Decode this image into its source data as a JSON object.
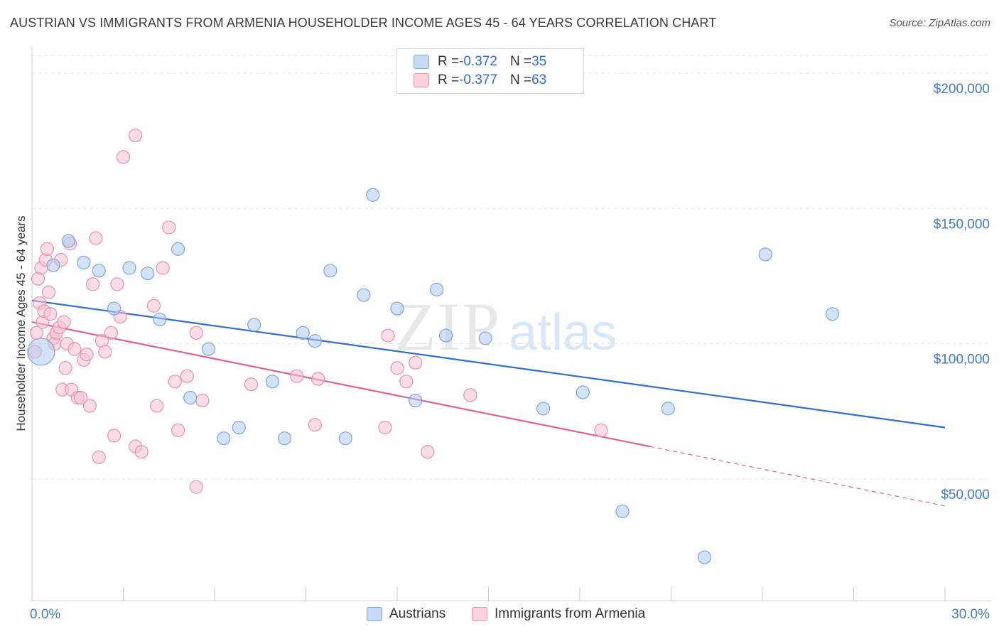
{
  "header": {
    "title": "AUSTRIAN VS IMMIGRANTS FROM ARMENIA HOUSEHOLDER INCOME AGES 45 - 64 YEARS CORRELATION CHART",
    "source": "Source: ZipAtlas.com"
  },
  "watermark": {
    "zip": "ZIP",
    "atlas": "atlas"
  },
  "legend": {
    "austrians": {
      "r_label": "R = ",
      "r_value": "-0.372",
      "n_label": "N = ",
      "n_value": "35"
    },
    "armenia": {
      "r_label": "R = ",
      "r_value": "-0.377",
      "n_label": "N = ",
      "n_value": "63"
    }
  },
  "bottom_legend": {
    "austrians": "Austrians",
    "armenia": "Immigrants from Armenia"
  },
  "colors": {
    "austrians_fill": "#aecbf0",
    "austrians_stroke": "#7aa6df",
    "austrians_line": "#2f6fce",
    "armenia_fill": "#f7c1d1",
    "armenia_stroke": "#eb8fab",
    "armenia_line": "#e0628e",
    "axis_text": "#3f7bd0",
    "grid": "#e3e3e3"
  },
  "chart_data": {
    "type": "scatter",
    "title": "AUSTRIAN VS IMMIGRANTS FROM ARMENIA HOUSEHOLDER INCOME AGES 45 - 64 YEARS CORRELATION CHART",
    "xlabel": "",
    "ylabel": "Householder Income Ages 45 - 64 years",
    "xlim": [
      0,
      30
    ],
    "ylim": [
      5000,
      210000
    ],
    "x_tick_labels": [
      "0.0%",
      "30.0%"
    ],
    "y_ticks": [
      50000,
      100000,
      150000,
      200000
    ],
    "y_tick_labels": [
      "$50,000",
      "$100,000",
      "$150,000",
      "$200,000"
    ],
    "grid": true,
    "legend_position": "top-center",
    "series": [
      {
        "name": "Austrians",
        "points": [
          [
            0.3,
            97000,
            "large"
          ],
          [
            0.7,
            129000
          ],
          [
            1.2,
            138000
          ],
          [
            1.7,
            130000
          ],
          [
            2.2,
            127000
          ],
          [
            2.7,
            113000
          ],
          [
            3.2,
            128000
          ],
          [
            3.8,
            126000
          ],
          [
            4.2,
            109000
          ],
          [
            4.8,
            135000
          ],
          [
            5.2,
            80000
          ],
          [
            5.8,
            98000
          ],
          [
            6.3,
            65000
          ],
          [
            6.8,
            69000
          ],
          [
            7.3,
            107000
          ],
          [
            7.9,
            86000
          ],
          [
            8.3,
            65000
          ],
          [
            8.9,
            104000
          ],
          [
            9.3,
            101000
          ],
          [
            9.8,
            127000
          ],
          [
            10.3,
            65000
          ],
          [
            10.9,
            118000
          ],
          [
            11.2,
            155000
          ],
          [
            12.0,
            113000
          ],
          [
            12.6,
            79000
          ],
          [
            13.3,
            120000
          ],
          [
            13.6,
            103000
          ],
          [
            14.9,
            102000
          ],
          [
            16.8,
            76000
          ],
          [
            18.1,
            82000
          ],
          [
            19.4,
            38000
          ],
          [
            20.9,
            76000
          ],
          [
            22.1,
            21000
          ],
          [
            24.1,
            133000
          ],
          [
            26.3,
            111000
          ]
        ],
        "trend": {
          "x": [
            0,
            30
          ],
          "y": [
            116000,
            69000
          ]
        }
      },
      {
        "name": "Immigrants from Armenia",
        "points": [
          [
            0.1,
            97000
          ],
          [
            0.2,
            124000
          ],
          [
            0.25,
            115000
          ],
          [
            0.3,
            128000
          ],
          [
            0.35,
            108000
          ],
          [
            0.4,
            112000
          ],
          [
            0.45,
            131000
          ],
          [
            0.5,
            135000
          ],
          [
            0.55,
            119000
          ],
          [
            0.6,
            111000
          ],
          [
            0.7,
            102000
          ],
          [
            0.75,
            100000
          ],
          [
            0.8,
            104000
          ],
          [
            0.9,
            106000
          ],
          [
            0.95,
            131000
          ],
          [
            1.0,
            83000
          ],
          [
            1.05,
            108000
          ],
          [
            1.1,
            91000
          ],
          [
            1.15,
            100000
          ],
          [
            1.25,
            137000
          ],
          [
            1.3,
            83000
          ],
          [
            1.4,
            98000
          ],
          [
            1.5,
            80000
          ],
          [
            1.7,
            94000
          ],
          [
            1.8,
            96000
          ],
          [
            1.9,
            77000
          ],
          [
            2.0,
            122000
          ],
          [
            2.1,
            139000
          ],
          [
            2.2,
            58000
          ],
          [
            2.3,
            101000
          ],
          [
            2.4,
            97000
          ],
          [
            2.6,
            104000
          ],
          [
            2.7,
            66000
          ],
          [
            2.8,
            122000
          ],
          [
            2.9,
            110000
          ],
          [
            3.0,
            169000
          ],
          [
            3.4,
            62000
          ],
          [
            3.4,
            177000
          ],
          [
            3.6,
            60000
          ],
          [
            4.0,
            114000
          ],
          [
            4.1,
            77000
          ],
          [
            4.3,
            128000
          ],
          [
            4.5,
            143000
          ],
          [
            4.7,
            86000
          ],
          [
            4.8,
            68000
          ],
          [
            5.1,
            88000
          ],
          [
            5.4,
            104000
          ],
          [
            5.6,
            79000
          ],
          [
            5.4,
            47000
          ],
          [
            7.2,
            85000
          ],
          [
            8.7,
            88000
          ],
          [
            9.3,
            70000
          ],
          [
            9.4,
            87000
          ],
          [
            11.6,
            69000
          ],
          [
            11.7,
            103000
          ],
          [
            12.0,
            91000
          ],
          [
            12.3,
            86000
          ],
          [
            12.6,
            93000
          ],
          [
            13.0,
            60000
          ],
          [
            14.4,
            81000
          ],
          [
            18.7,
            68000
          ],
          [
            0.15,
            104000
          ],
          [
            1.6,
            80000
          ]
        ],
        "trend": {
          "x": [
            0,
            20.3
          ],
          "y": [
            108000,
            62000
          ]
        },
        "trend_extension": {
          "x": [
            20.3,
            30
          ],
          "y": [
            62000,
            40000
          ]
        }
      }
    ]
  }
}
